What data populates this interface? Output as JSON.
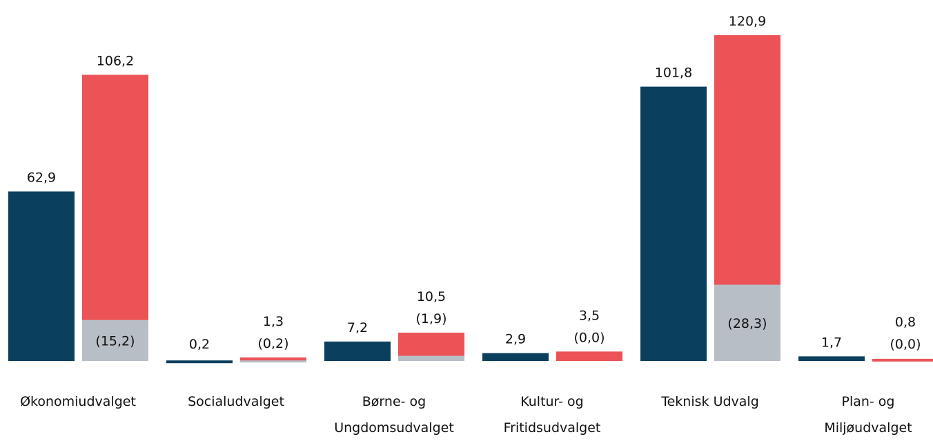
{
  "chart_data": {
    "type": "bar",
    "categories": [
      "Økonomiudvalget",
      "Socialudvalget",
      "Børne- og\nUngdomsudvalget",
      "Kultur- og\nFritidsudvalget",
      "Teknisk Udvalg",
      "Plan- og\nMiljøudvalget"
    ],
    "series": [
      {
        "color": "#0b3f5e",
        "values": [
          62.9,
          0.2,
          7.2,
          2.9,
          101.8,
          1.7
        ],
        "value_labels": [
          "62,9",
          "0,2",
          "7,2",
          "2,9",
          "101,8",
          "1,7"
        ]
      },
      {
        "color": "#eb5357",
        "values": [
          106.2,
          1.3,
          10.5,
          3.5,
          120.9,
          0.8
        ],
        "value_labels": [
          "106,2",
          "1,3",
          "10,5",
          "3,5",
          "120,9",
          "0,8"
        ]
      },
      {
        "color": "#b8bec6",
        "overlay": true,
        "values": [
          15.2,
          0.2,
          1.9,
          0.0,
          28.3,
          0.0
        ],
        "value_labels": [
          "(15,2)",
          "(0,2)",
          "(1,9)",
          "(0,0)",
          "(28,3)",
          "(0,0)"
        ]
      }
    ],
    "ylim": [
      0,
      125
    ]
  }
}
